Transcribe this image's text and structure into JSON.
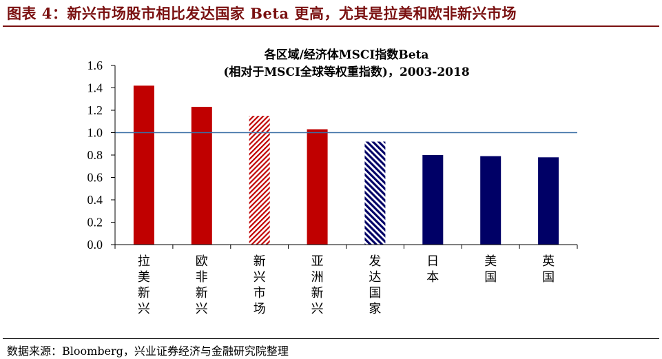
{
  "figure": {
    "title": "图表 4：新兴市场股市相比发达国家 Beta 更高，尤其是拉美和欧非新兴市场",
    "source": "数据来源：Bloomberg，兴业证券经济与金融研究院整理"
  },
  "colors": {
    "accent_dark_red": "#7a1010",
    "bar_red": "#c00000",
    "bar_navy": "#000066",
    "reference_line": "#3a6ea5",
    "axis": "#000000"
  },
  "chart_data": {
    "type": "bar",
    "title_lines": [
      "各区域/经济体MSCI指数Beta",
      "(相对于MSCI全球等权重指数)，2003-2018"
    ],
    "categories": [
      "拉美新兴",
      "欧非新兴",
      "新兴市场",
      "亚洲新兴",
      "发达国家",
      "日本",
      "美国",
      "英国"
    ],
    "values": [
      1.42,
      1.23,
      1.15,
      1.03,
      0.92,
      0.8,
      0.79,
      0.78
    ],
    "bar_colors": [
      "red",
      "red",
      "red-hatched",
      "red",
      "navy-hatched",
      "navy",
      "navy",
      "navy"
    ],
    "reference_line": 1.0,
    "ylim": [
      0.0,
      1.6
    ],
    "yticks": [
      "0.0",
      "0.2",
      "0.4",
      "0.6",
      "0.8",
      "1.0",
      "1.2",
      "1.4",
      "1.6"
    ],
    "xlabel": "",
    "ylabel": "",
    "grid": false,
    "legend": "none"
  }
}
